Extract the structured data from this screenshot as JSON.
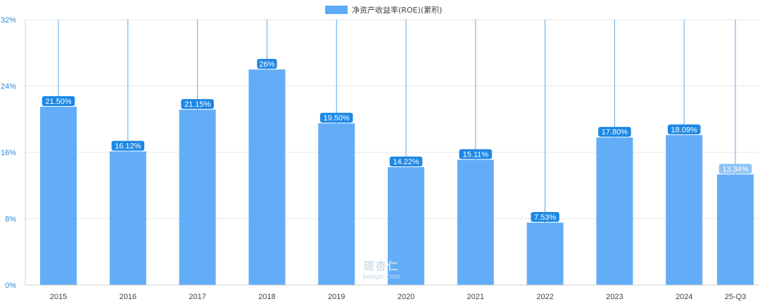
{
  "chart_data": {
    "type": "bar",
    "categories": [
      "2015",
      "2016",
      "2017",
      "2018",
      "2019",
      "2020",
      "2021",
      "2022",
      "2023",
      "2024",
      "25-Q3"
    ],
    "series": [
      {
        "name": "净资产收益率(ROE)(累积)",
        "values": [
          21.5,
          16.12,
          21.15,
          26,
          19.5,
          14.22,
          15.11,
          7.53,
          17.8,
          18.09,
          13.34
        ],
        "labels": [
          "21.50%",
          "16.12%",
          "21.15%",
          "26%",
          "19.50%",
          "14.22%",
          "15.11%",
          "7.53%",
          "17.80%",
          "18.09%",
          "13.34%"
        ],
        "color": "#5eaaf8"
      }
    ],
    "ylim": [
      0,
      32
    ],
    "yticks": [
      0,
      8,
      16,
      24,
      32
    ],
    "ytick_labels": [
      "0%",
      "8%",
      "16%",
      "24%",
      "32%"
    ],
    "xlabel": "",
    "ylabel": "",
    "grid": true,
    "legend_position": "top-center",
    "colors": {
      "bar": "#5eaaf8",
      "label_bg": "#1e88e5",
      "label_bg_last": "#8ec3f4",
      "axis_text": "#2b8be0",
      "gridline": "#e6e6e6",
      "cat_line": "#3d9be9"
    }
  },
  "watermark": {
    "logo_text": "理杏仁",
    "url_text": "lixinger.com"
  }
}
